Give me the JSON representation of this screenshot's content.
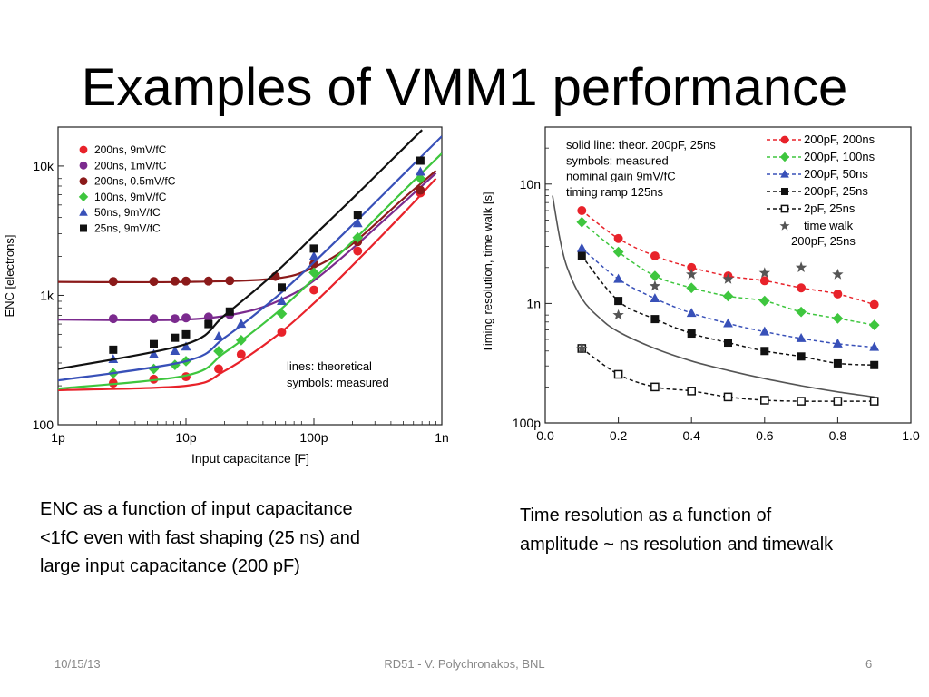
{
  "slide": {
    "title": "Examples of VMM1 performance",
    "left_caption": [
      "ENC as a function of input capacitance",
      "<1fC even with fast shaping (25 ns) and",
      "large input capacitance (200 pF)"
    ],
    "right_caption": [
      "Time resolution as a function of",
      "amplitude ~ ns resolution and timewalk"
    ],
    "footer": {
      "date": "10/15/13",
      "center": "RD51 - V. Polychronakos, BNL",
      "page": "6"
    }
  },
  "chart_data": [
    {
      "type": "scatter",
      "xlabel": "Input capacitance [F]",
      "ylabel": "ENC [electrons]",
      "xscale": "log",
      "yscale": "log",
      "xlim": [
        1e-12,
        1e-09
      ],
      "ylim": [
        100,
        20000
      ],
      "xticks": [
        {
          "v": 1e-12,
          "label": "1p"
        },
        {
          "v": 1e-11,
          "label": "10p"
        },
        {
          "v": 1e-10,
          "label": "100p"
        },
        {
          "v": 1e-09,
          "label": "1n"
        }
      ],
      "yticks": [
        {
          "v": 100,
          "label": "100"
        },
        {
          "v": 1000,
          "label": "1k"
        },
        {
          "v": 10000,
          "label": "10k"
        }
      ],
      "legend_position": "top-left",
      "annotation": [
        "lines: theoretical",
        "symbols: measured"
      ],
      "series": [
        {
          "name": "200ns, 9mV/fC",
          "color": "#e8222a",
          "marker": "circle",
          "x": [
            2.7e-12,
            5.6e-12,
            1e-11,
            1.8e-11,
            2.7e-11,
            5.6e-11,
            1e-10,
            2.2e-10,
            6.8e-10
          ],
          "y": [
            210,
            225,
            235,
            270,
            350,
            520,
            1100,
            2200,
            6200
          ],
          "line": [
            [
              1e-12,
              185
            ],
            [
              1e-11,
              200
            ],
            [
              2e-11,
              260
            ],
            [
              5e-11,
              480
            ],
            [
              1e-10,
              870
            ],
            [
              2e-10,
              1700
            ],
            [
              5e-10,
              4300
            ],
            [
              9e-10,
              8000
            ]
          ]
        },
        {
          "name": "200ns, 1mV/fC",
          "color": "#7b2a8e",
          "marker": "circle",
          "x": [
            2.7e-12,
            5.6e-12,
            8.2e-12,
            1e-11,
            1.5e-11,
            2.2e-11
          ],
          "y": [
            660,
            660,
            660,
            670,
            680,
            710
          ],
          "line": [
            [
              1e-12,
              650
            ],
            [
              1e-11,
              650
            ],
            [
              3e-11,
              750
            ],
            [
              6e-11,
              960
            ],
            [
              1e-10,
              1300
            ],
            [
              2e-10,
              2300
            ],
            [
              5e-10,
              5200
            ],
            [
              9e-10,
              8800
            ]
          ]
        },
        {
          "name": "200ns, 0.5mV/fC",
          "color": "#8b1a1a",
          "marker": "circle",
          "x": [
            2.7e-12,
            5.6e-12,
            8.2e-12,
            1e-11,
            1.5e-11,
            2.2e-11,
            5e-11,
            1e-10,
            2.2e-10,
            6.8e-10
          ],
          "y": [
            1280,
            1280,
            1290,
            1290,
            1290,
            1300,
            1400,
            1750,
            2600,
            6500
          ],
          "line": [
            [
              1e-12,
              1270
            ],
            [
              1e-11,
              1270
            ],
            [
              5e-11,
              1350
            ],
            [
              1e-10,
              1650
            ],
            [
              2e-10,
              2500
            ],
            [
              5e-10,
              5600
            ],
            [
              9e-10,
              9200
            ]
          ]
        },
        {
          "name": "100ns, 9mV/fC",
          "color": "#3ec63e",
          "marker": "diamond",
          "x": [
            2.7e-12,
            5.6e-12,
            8.2e-12,
            1e-11,
            1.8e-11,
            2.7e-11,
            5.6e-11,
            1e-10,
            2.2e-10,
            6.8e-10
          ],
          "y": [
            250,
            270,
            290,
            310,
            370,
            450,
            720,
            1500,
            2800,
            8000
          ],
          "line": [
            [
              1e-12,
              190
            ],
            [
              1e-11,
              240
            ],
            [
              2e-11,
              360
            ],
            [
              5e-11,
              720
            ],
            [
              1e-10,
              1350
            ],
            [
              2e-10,
              2600
            ],
            [
              5e-10,
              6400
            ],
            [
              1e-09,
              12500
            ]
          ]
        },
        {
          "name": "50ns, 9mV/fC",
          "color": "#3850b8",
          "marker": "triangle",
          "x": [
            2.7e-12,
            5.6e-12,
            8.2e-12,
            1e-11,
            1.8e-11,
            2.7e-11,
            5.6e-11,
            1e-10,
            2.2e-10,
            6.8e-10
          ],
          "y": [
            320,
            350,
            370,
            400,
            480,
            600,
            900,
            2000,
            3600,
            9000
          ],
          "line": [
            [
              1e-12,
              220
            ],
            [
              1e-11,
              310
            ],
            [
              2e-11,
              470
            ],
            [
              5e-11,
              960
            ],
            [
              1e-10,
              1800
            ],
            [
              2e-10,
              3500
            ],
            [
              5e-10,
              8600
            ],
            [
              1e-09,
              17000
            ]
          ]
        },
        {
          "name": "25ns, 9mV/fC",
          "color": "#111111",
          "marker": "square",
          "x": [
            2.7e-12,
            5.6e-12,
            8.2e-12,
            1e-11,
            1.5e-11,
            2.2e-11,
            5.6e-11,
            1e-10,
            2.2e-10,
            6.8e-10
          ],
          "y": [
            380,
            420,
            470,
            500,
            600,
            750,
            1150,
            2300,
            4200,
            11000
          ],
          "line": [
            [
              1e-12,
              270
            ],
            [
              1e-11,
              420
            ],
            [
              2e-11,
              700
            ],
            [
              5e-11,
              1500
            ],
            [
              1e-10,
              2900
            ],
            [
              2e-10,
              5600
            ],
            [
              4e-10,
              11000
            ],
            [
              7e-10,
              19000
            ]
          ]
        }
      ]
    },
    {
      "type": "line",
      "xlabel": "",
      "ylabel": "Timing resolution, time walk [s]",
      "xscale": "linear",
      "yscale": "log",
      "xlim": [
        0.0,
        1.0
      ],
      "ylim": [
        1e-10,
        3e-08
      ],
      "xticks": [
        {
          "v": 0.0,
          "label": "0.0"
        },
        {
          "v": 0.2,
          "label": "0.2"
        },
        {
          "v": 0.4,
          "label": "0.4"
        },
        {
          "v": 0.6,
          "label": "0.6"
        },
        {
          "v": 0.8,
          "label": "0.8"
        },
        {
          "v": 1.0,
          "label": "1.0"
        }
      ],
      "yticks": [
        {
          "v": 1e-10,
          "label": "100p"
        },
        {
          "v": 1e-09,
          "label": "1n"
        },
        {
          "v": 1e-08,
          "label": "10n"
        }
      ],
      "legend_position": "top-right",
      "annotation": [
        "solid line: theor. 200pF, 25ns",
        "symbols: measured",
        "nominal gain 9mV/fC",
        "timing ramp 125ns"
      ],
      "theory_line": {
        "color": "#555555",
        "x": [
          0.02,
          0.04,
          0.06,
          0.1,
          0.15,
          0.2,
          0.3,
          0.4,
          0.5,
          0.6,
          0.7,
          0.8,
          0.9
        ],
        "y": [
          8e-09,
          3.5e-09,
          2e-09,
          1.1e-09,
          7.5e-10,
          5.8e-10,
          4.2e-10,
          3.3e-10,
          2.75e-10,
          2.35e-10,
          2.05e-10,
          1.82e-10,
          1.65e-10
        ]
      },
      "series": [
        {
          "name": "200pF, 200ns",
          "color": "#e8222a",
          "marker": "circle",
          "line": "dashed",
          "x": [
            0.1,
            0.2,
            0.3,
            0.4,
            0.5,
            0.6,
            0.7,
            0.8,
            0.9
          ],
          "y": [
            6e-09,
            3.5e-09,
            2.5e-09,
            2e-09,
            1.7e-09,
            1.55e-09,
            1.35e-09,
            1.2e-09,
            9.8e-10
          ]
        },
        {
          "name": "200pF, 100ns",
          "color": "#3ec63e",
          "marker": "diamond",
          "line": "dashed",
          "x": [
            0.1,
            0.2,
            0.3,
            0.4,
            0.5,
            0.6,
            0.7,
            0.8,
            0.9
          ],
          "y": [
            4.8e-09,
            2.7e-09,
            1.7e-09,
            1.35e-09,
            1.15e-09,
            1.05e-09,
            8.5e-10,
            7.5e-10,
            6.6e-10
          ]
        },
        {
          "name": "200pF, 50ns",
          "color": "#3850b8",
          "marker": "triangle",
          "line": "dashed",
          "x": [
            0.1,
            0.2,
            0.3,
            0.4,
            0.5,
            0.6,
            0.7,
            0.8,
            0.9
          ],
          "y": [
            2.9e-09,
            1.6e-09,
            1.1e-09,
            8.3e-10,
            6.8e-10,
            5.8e-10,
            5.1e-10,
            4.6e-10,
            4.3e-10
          ]
        },
        {
          "name": "200pF, 25ns",
          "color": "#111111",
          "marker": "square",
          "line": "dashed",
          "x": [
            0.1,
            0.2,
            0.3,
            0.4,
            0.5,
            0.6,
            0.7,
            0.8,
            0.9
          ],
          "y": [
            2.5e-09,
            1.05e-09,
            7.4e-10,
            5.6e-10,
            4.7e-10,
            4e-10,
            3.6e-10,
            3.15e-10,
            3.05e-10
          ]
        },
        {
          "name": "2pF, 25ns",
          "color": "#111111",
          "marker": "open-square",
          "line": "dashed",
          "x": [
            0.1,
            0.2,
            0.3,
            0.4,
            0.5,
            0.6,
            0.7,
            0.8,
            0.9
          ],
          "y": [
            4.2e-10,
            2.55e-10,
            2e-10,
            1.85e-10,
            1.65e-10,
            1.55e-10,
            1.52e-10,
            1.52e-10,
            1.52e-10
          ]
        },
        {
          "name": "time walk 200pF, 25ns",
          "legend": [
            "time walk",
            "200pF, 25ns"
          ],
          "color": "#555555",
          "marker": "star",
          "line": "none",
          "x": [
            0.1,
            0.2,
            0.3,
            0.4,
            0.5,
            0.6,
            0.7,
            0.8
          ],
          "y": [
            4.2e-10,
            8e-10,
            1.4e-09,
            1.75e-09,
            1.6e-09,
            1.8e-09,
            2e-09,
            1.75e-09
          ]
        }
      ]
    }
  ]
}
